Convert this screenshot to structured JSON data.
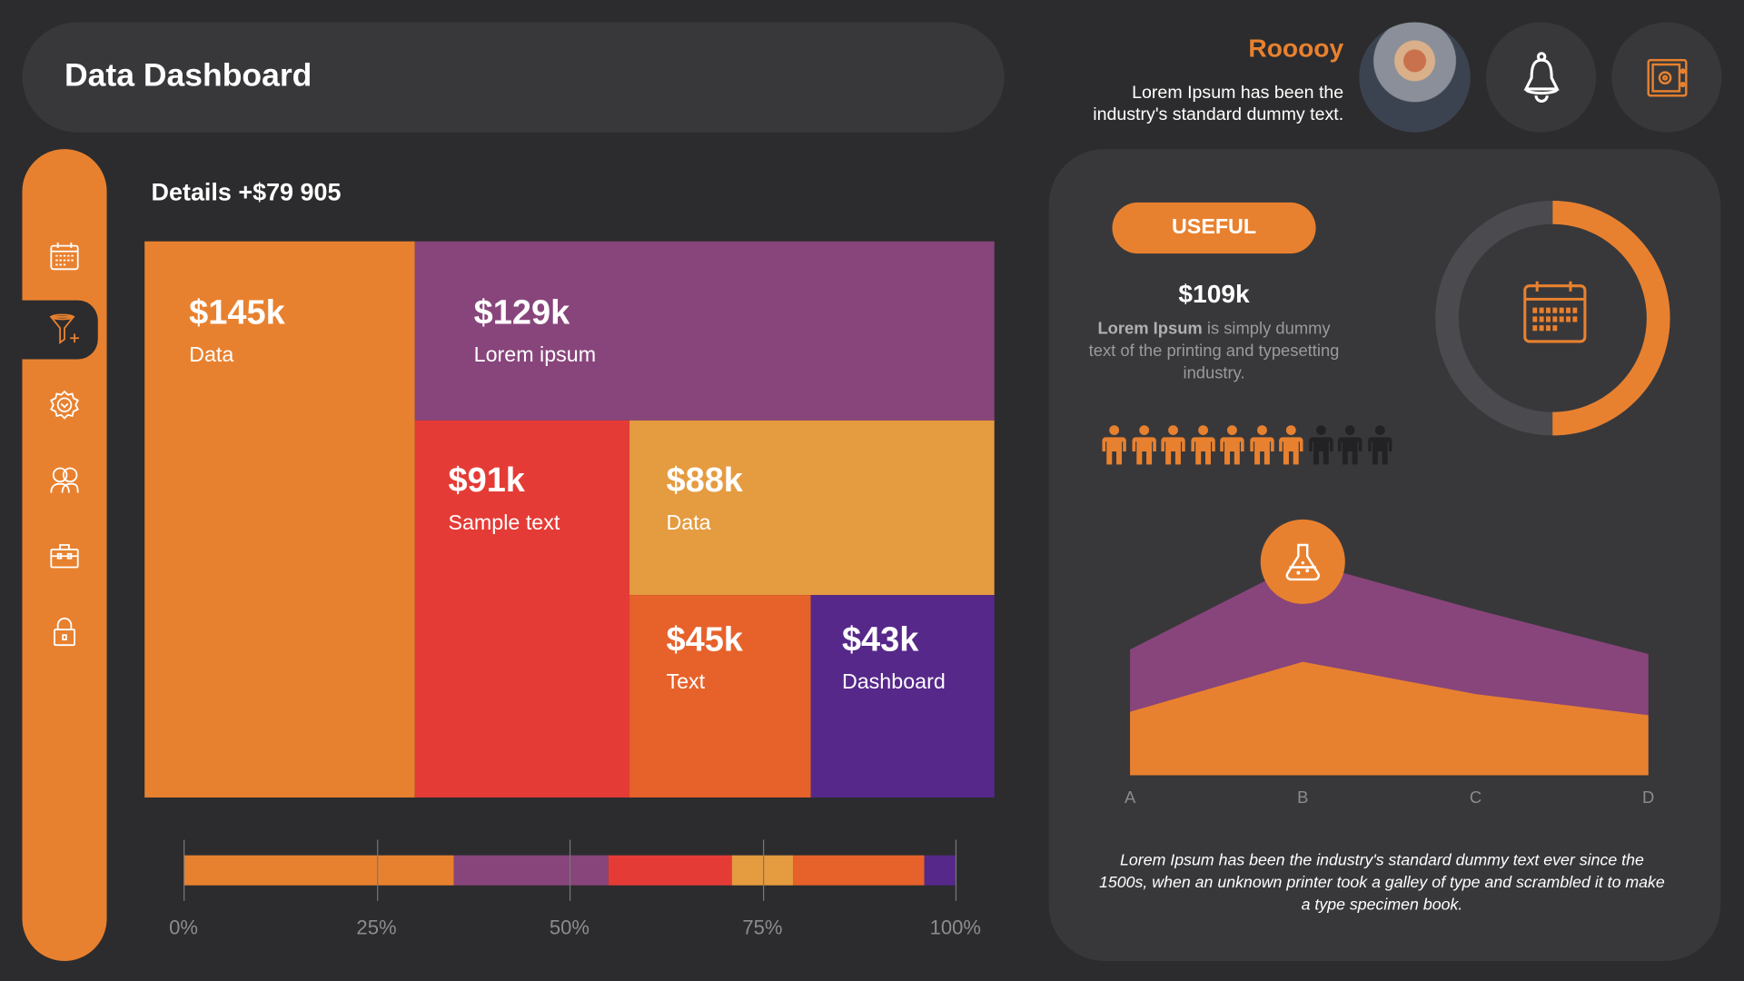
{
  "header": {
    "title": "Data Dashboard"
  },
  "user": {
    "name": "Rooooy",
    "description": "Lorem Ipsum has been the industry's standard dummy text."
  },
  "sidebar": {
    "items": [
      {
        "icon": "calendar-icon"
      },
      {
        "icon": "funnel-add-icon",
        "active": true
      },
      {
        "icon": "gear-icon"
      },
      {
        "icon": "users-icon"
      },
      {
        "icon": "briefcase-icon"
      },
      {
        "icon": "lock-icon"
      }
    ]
  },
  "details": {
    "title": "Details +$79 905"
  },
  "treemap": [
    {
      "value": "$145k",
      "label": "Data",
      "color": "#e8812f"
    },
    {
      "value": "$129k",
      "label": "Lorem ipsum",
      "color": "#88457b"
    },
    {
      "value": "$91k",
      "label": "Sample text",
      "color": "#e53b36"
    },
    {
      "value": "$88k",
      "label": "Data",
      "color": "#e59b3f"
    },
    {
      "value": "$45k",
      "label": "Text",
      "color": "#e6622a"
    },
    {
      "value": "$43k",
      "label": "Dashboard",
      "color": "#56288a"
    }
  ],
  "stacked_bar": {
    "segments_percent": [
      35,
      20,
      16,
      8,
      17,
      4
    ],
    "colors": [
      "#e8812f",
      "#88457b",
      "#e53b36",
      "#e59b3f",
      "#e6622a",
      "#56288a"
    ],
    "ticks": [
      "0%",
      "25%",
      "50%",
      "75%",
      "100%"
    ]
  },
  "panel": {
    "badge": "USEFUL",
    "amount": "$109k",
    "text_bold": "Lorem Ipsum",
    "text_rest": " is simply dummy text of the printing and typesetting industry.",
    "donut_percent": 50,
    "people_total": 10,
    "people_highlighted": 7,
    "footer": "Lorem Ipsum has been the industry's standard dummy text ever since the 1500s, when an unknown printer took a galley of type and scrambled it to make a type specimen book."
  },
  "chart_data": {
    "type": "area",
    "categories": [
      "A",
      "B",
      "C",
      "D"
    ],
    "series": [
      {
        "values": [
          113,
          192,
          149,
          109
        ],
        "color": "#88457b"
      },
      {
        "values": [
          57,
          102,
          73,
          54
        ],
        "color": "#e8812f"
      }
    ],
    "highlight_icon": "flask-icon",
    "highlight_category": "B"
  }
}
